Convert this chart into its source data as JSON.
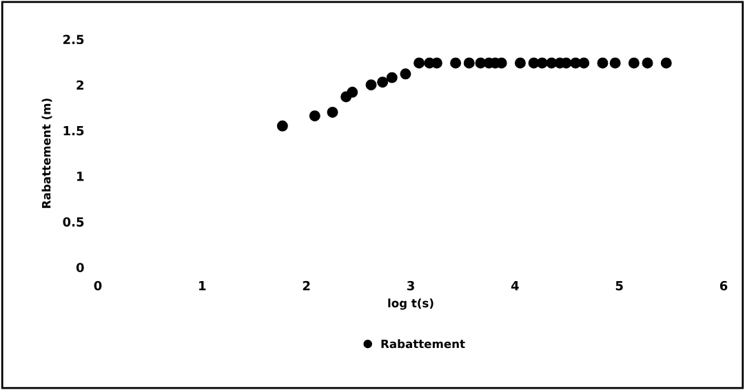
{
  "chart_data": {
    "type": "scatter",
    "xlabel": "log t(s)",
    "ylabel": "Rabattement (m)",
    "xlim": [
      0,
      6
    ],
    "xticks": [
      0,
      1,
      2,
      3,
      4,
      5,
      6
    ],
    "ylim": [
      0,
      2.5
    ],
    "yticks": [
      0,
      0.5,
      1,
      1.5,
      2,
      2.5
    ],
    "grid": false,
    "legend": "bottom",
    "marker": "circle",
    "series": [
      {
        "name": "Rabattement",
        "color": "#000000",
        "x": [
          1.77,
          2.08,
          2.25,
          2.38,
          2.44,
          2.62,
          2.73,
          2.82,
          2.95,
          3.08,
          3.18,
          3.25,
          3.43,
          3.56,
          3.67,
          3.75,
          3.81,
          3.87,
          4.05,
          4.18,
          4.26,
          4.35,
          4.43,
          4.49,
          4.58,
          4.66,
          4.84,
          4.96,
          5.14,
          5.27,
          5.45
        ],
        "values": [
          1.55,
          1.66,
          1.7,
          1.87,
          1.92,
          2.0,
          2.03,
          2.08,
          2.12,
          2.24,
          2.24,
          2.24,
          2.24,
          2.24,
          2.24,
          2.24,
          2.24,
          2.24,
          2.24,
          2.24,
          2.24,
          2.24,
          2.24,
          2.24,
          2.24,
          2.24,
          2.24,
          2.24,
          2.24,
          2.24,
          2.24
        ]
      }
    ]
  }
}
